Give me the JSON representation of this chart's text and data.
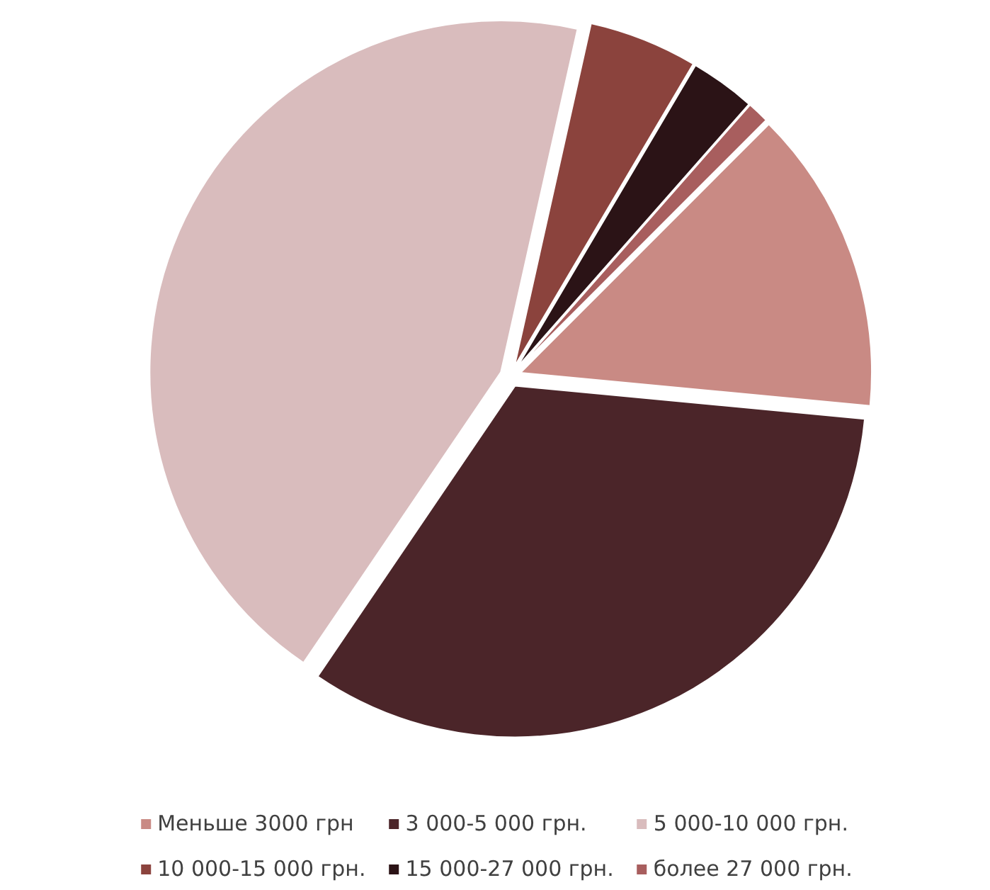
{
  "chart_data": {
    "type": "pie",
    "categories": [
      "Меньше 3000 грн",
      "3 000-5 000 грн.",
      "5 000-10 000 грн.",
      "10 000-15 000 грн.",
      "15 000-27 000 грн.",
      "более 27 000 грн."
    ],
    "values": [
      14,
      33,
      44,
      5,
      3,
      1
    ],
    "colors": [
      "#c98a84",
      "#4b2529",
      "#d9bcbd",
      "#8b433d",
      "#2b1316",
      "#a85e5e"
    ],
    "legend": "bottom"
  }
}
